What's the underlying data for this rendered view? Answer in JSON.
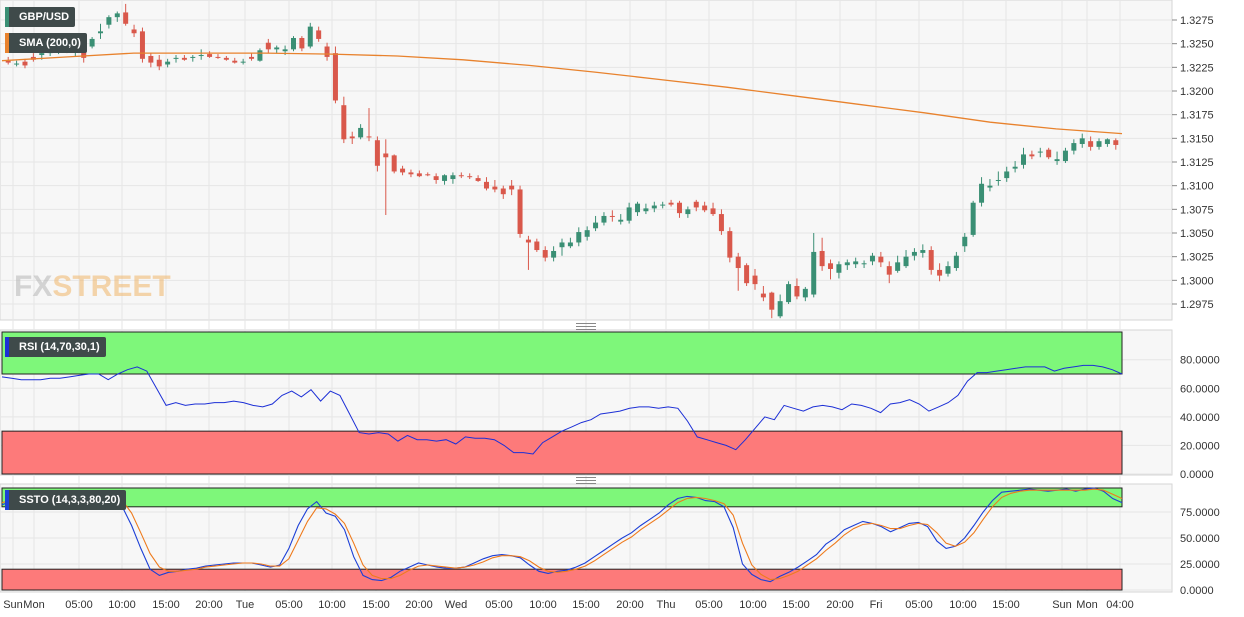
{
  "colors": {
    "bull": "#3a8f74",
    "bear": "#d9584b",
    "sma": "#e8822d",
    "rsi": "#1c2fd6",
    "stoch_k": "#1c3fd6",
    "stoch_d": "#ee7a1c",
    "overbought_zone": "#7ef77a",
    "oversold_zone": "#fd7a7a",
    "grid": "#e6e6e6",
    "panel_bg": "#f7f7f7"
  },
  "watermark": {
    "fx": "FX",
    "street": "STREET"
  },
  "legends": {
    "pair": "GBP/USD",
    "sma": "SMA (200,0)",
    "rsi": "RSI (14,70,30,1)",
    "stoch": "SSTO (14,3,3,80,20)"
  },
  "chart_data": [
    {
      "type": "candlestick",
      "title": "GBP/USD",
      "ylim": [
        1.2955,
        1.33
      ],
      "y_ticks": [
        "1.3275",
        "1.3250",
        "1.3225",
        "1.3200",
        "1.3175",
        "1.3150",
        "1.3125",
        "1.3100",
        "1.3075",
        "1.3050",
        "1.3025",
        "1.3000",
        "1.2975"
      ],
      "x_ticks": [
        "Sun",
        "Mon",
        "05:00",
        "10:00",
        "15:00",
        "20:00",
        "Tue",
        "05:00",
        "10:00",
        "15:00",
        "20:00",
        "Wed",
        "05:00",
        "10:00",
        "15:00",
        "20:00",
        "Thu",
        "05:00",
        "10:00",
        "15:00",
        "20:00",
        "Fri",
        "05:00",
        "10:00",
        "15:00",
        "Sun",
        "Mon",
        "04:00"
      ],
      "candles": [
        [
          1.3232,
          1.3236,
          1.3228,
          1.323
        ],
        [
          1.3228,
          1.3232,
          1.3226,
          1.3229
        ],
        [
          1.3231,
          1.3234,
          1.3224,
          1.3227
        ],
        [
          1.3236,
          1.324,
          1.3231,
          1.3233
        ],
        [
          1.3238,
          1.3244,
          1.3233,
          1.324
        ],
        [
          1.324,
          1.3244,
          1.3237,
          1.3242
        ],
        [
          1.3243,
          1.325,
          1.3239,
          1.3246
        ],
        [
          1.3244,
          1.3248,
          1.324,
          1.3242
        ],
        [
          1.3242,
          1.3248,
          1.3236,
          1.3246
        ],
        [
          1.3242,
          1.3246,
          1.323,
          1.3235
        ],
        [
          1.3247,
          1.3257,
          1.3245,
          1.3255
        ],
        [
          1.3261,
          1.3271,
          1.3255,
          1.3263
        ],
        [
          1.327,
          1.328,
          1.3266,
          1.3278
        ],
        [
          1.3278,
          1.3284,
          1.3273,
          1.3282
        ],
        [
          1.3283,
          1.3292,
          1.3269,
          1.3271
        ],
        [
          1.3265,
          1.327,
          1.3257,
          1.3261
        ],
        [
          1.3263,
          1.3267,
          1.323,
          1.3234
        ],
        [
          1.3237,
          1.324,
          1.3225,
          1.323
        ],
        [
          1.3233,
          1.3238,
          1.3222,
          1.3226
        ],
        [
          1.3228,
          1.3234,
          1.3225,
          1.3231
        ],
        [
          1.3234,
          1.3238,
          1.323,
          1.3235
        ],
        [
          1.3235,
          1.3238,
          1.3232,
          1.3233
        ],
        [
          1.3235,
          1.3238,
          1.3231,
          1.3236
        ],
        [
          1.3237,
          1.3244,
          1.3233,
          1.3238
        ],
        [
          1.3239,
          1.3242,
          1.3235,
          1.3236
        ],
        [
          1.3236,
          1.3239,
          1.3234,
          1.3235
        ],
        [
          1.3235,
          1.3237,
          1.3232,
          1.3233
        ],
        [
          1.3232,
          1.3235,
          1.3229,
          1.323
        ],
        [
          1.323,
          1.3234,
          1.3228,
          1.3231
        ],
        [
          1.3236,
          1.324,
          1.3232,
          1.3234
        ],
        [
          1.3232,
          1.3245,
          1.3231,
          1.3243
        ],
        [
          1.3251,
          1.3255,
          1.324,
          1.3244
        ],
        [
          1.3244,
          1.3248,
          1.324,
          1.3246
        ],
        [
          1.3242,
          1.3248,
          1.3238,
          1.3244
        ],
        [
          1.3244,
          1.3258,
          1.3242,
          1.3256
        ],
        [
          1.3256,
          1.3258,
          1.3242,
          1.3245
        ],
        [
          1.3247,
          1.3272,
          1.3245,
          1.3268
        ],
        [
          1.3264,
          1.3268,
          1.3252,
          1.3255
        ],
        [
          1.3247,
          1.3251,
          1.3232,
          1.3236
        ],
        [
          1.324,
          1.3247,
          1.3187,
          1.319
        ],
        [
          1.3185,
          1.3194,
          1.3145,
          1.3149
        ],
        [
          1.3152,
          1.3157,
          1.3144,
          1.315
        ],
        [
          1.3151,
          1.3165,
          1.3149,
          1.3161
        ],
        [
          1.3152,
          1.3182,
          1.3147,
          1.3151
        ],
        [
          1.3148,
          1.3152,
          1.3115,
          1.3121
        ],
        [
          1.3134,
          1.3149,
          1.3069,
          1.313
        ],
        [
          1.3132,
          1.3133,
          1.3113,
          1.3115
        ],
        [
          1.3118,
          1.3121,
          1.3111,
          1.3114
        ],
        [
          1.3114,
          1.3117,
          1.3109,
          1.3112
        ],
        [
          1.3113,
          1.3116,
          1.3109,
          1.311
        ],
        [
          1.3112,
          1.3114,
          1.311,
          1.3111
        ],
        [
          1.311,
          1.3113,
          1.3102,
          1.3106
        ],
        [
          1.3105,
          1.3112,
          1.3101,
          1.3111
        ],
        [
          1.3107,
          1.3114,
          1.3102,
          1.3111
        ],
        [
          1.3111,
          1.3114,
          1.3108,
          1.311
        ],
        [
          1.311,
          1.3113,
          1.3107,
          1.3109
        ],
        [
          1.3108,
          1.3111,
          1.3104,
          1.3105
        ],
        [
          1.3104,
          1.3109,
          1.3095,
          1.3097
        ],
        [
          1.3099,
          1.3106,
          1.3093,
          1.3096
        ],
        [
          1.3097,
          1.31,
          1.3086,
          1.3091
        ],
        [
          1.31,
          1.3106,
          1.309,
          1.3096
        ],
        [
          1.3096,
          1.31,
          1.3045,
          1.3049
        ],
        [
          1.3043,
          1.3047,
          1.3011,
          1.304
        ],
        [
          1.3041,
          1.3044,
          1.303,
          1.3032
        ],
        [
          1.3032,
          1.3036,
          1.302,
          1.3024
        ],
        [
          1.3024,
          1.3036,
          1.302,
          1.3031
        ],
        [
          1.3035,
          1.3044,
          1.3026,
          1.304
        ],
        [
          1.3036,
          1.3045,
          1.3034,
          1.304
        ],
        [
          1.304,
          1.3056,
          1.3036,
          1.3051
        ],
        [
          1.3046,
          1.3057,
          1.3042,
          1.3053
        ],
        [
          1.3055,
          1.3068,
          1.3052,
          1.3061
        ],
        [
          1.3061,
          1.3072,
          1.3058,
          1.3068
        ],
        [
          1.3068,
          1.3074,
          1.3062,
          1.3067
        ],
        [
          1.3062,
          1.307,
          1.3059,
          1.3064
        ],
        [
          1.3063,
          1.3082,
          1.306,
          1.3077
        ],
        [
          1.3072,
          1.3083,
          1.3068,
          1.3081
        ],
        [
          1.3073,
          1.3081,
          1.307,
          1.3076
        ],
        [
          1.3076,
          1.3083,
          1.3072,
          1.3079
        ],
        [
          1.3079,
          1.3083,
          1.3076,
          1.308
        ],
        [
          1.3082,
          1.3085,
          1.3078,
          1.308
        ],
        [
          1.3082,
          1.3084,
          1.3066,
          1.3071
        ],
        [
          1.307,
          1.3078,
          1.3066,
          1.3075
        ],
        [
          1.3083,
          1.3085,
          1.3073,
          1.3077
        ],
        [
          1.3079,
          1.3083,
          1.3072,
          1.3074
        ],
        [
          1.3076,
          1.3082,
          1.3068,
          1.307
        ],
        [
          1.307,
          1.3075,
          1.3048,
          1.3052
        ],
        [
          1.3052,
          1.3056,
          1.3019,
          1.3024
        ],
        [
          1.3025,
          1.3029,
          1.2989,
          1.3013
        ],
        [
          1.3016,
          1.3018,
          1.2994,
          1.2997
        ],
        [
          1.3005,
          1.3012,
          1.299,
          1.2996
        ],
        [
          1.2986,
          1.2994,
          1.2978,
          1.2982
        ],
        [
          1.2987,
          1.2988,
          1.296,
          1.2969
        ],
        [
          1.2962,
          1.2985,
          1.296,
          1.2978
        ],
        [
          1.2977,
          1.2999,
          1.2975,
          1.2996
        ],
        [
          1.2994,
          1.3002,
          1.298,
          1.2983
        ],
        [
          1.2982,
          1.2993,
          1.2978,
          1.2991
        ],
        [
          1.2985,
          1.305,
          1.2982,
          1.303
        ],
        [
          1.3031,
          1.3045,
          1.301,
          1.3015
        ],
        [
          1.3018,
          1.3022,
          1.3001,
          1.3012
        ],
        [
          1.3008,
          1.302,
          1.3002,
          1.3017
        ],
        [
          1.3016,
          1.3022,
          1.3011,
          1.3019
        ],
        [
          1.3017,
          1.3024,
          1.3013,
          1.302
        ],
        [
          1.3017,
          1.3021,
          1.3013,
          1.3018
        ],
        [
          1.302,
          1.3029,
          1.3016,
          1.3026
        ],
        [
          1.3025,
          1.303,
          1.3014,
          1.3019
        ],
        [
          1.3015,
          1.302,
          1.2997,
          1.3006
        ],
        [
          1.301,
          1.3026,
          1.3008,
          1.3019
        ],
        [
          1.3015,
          1.3032,
          1.3013,
          1.3025
        ],
        [
          1.3026,
          1.3034,
          1.3021,
          1.303
        ],
        [
          1.3029,
          1.3038,
          1.3024,
          1.3032
        ],
        [
          1.3032,
          1.3036,
          1.3006,
          1.3011
        ],
        [
          1.3011,
          1.3018,
          1.2999,
          1.3005
        ],
        [
          1.3007,
          1.302,
          1.3004,
          1.3015
        ],
        [
          1.3013,
          1.303,
          1.301,
          1.3026
        ],
        [
          1.3036,
          1.305,
          1.303,
          1.3046
        ],
        [
          1.3048,
          1.3084,
          1.3046,
          1.3082
        ],
        [
          1.3082,
          1.3109,
          1.3078,
          1.3102
        ],
        [
          1.3098,
          1.3107,
          1.3094,
          1.31
        ],
        [
          1.3105,
          1.3115,
          1.31,
          1.3106
        ],
        [
          1.3108,
          1.312,
          1.3104,
          1.3115
        ],
        [
          1.3118,
          1.3126,
          1.3114,
          1.312
        ],
        [
          1.3122,
          1.314,
          1.3118,
          1.3133
        ],
        [
          1.3133,
          1.3137,
          1.3128,
          1.3131
        ],
        [
          1.3135,
          1.314,
          1.313,
          1.3136
        ],
        [
          1.3138,
          1.314,
          1.3128,
          1.313
        ],
        [
          1.3126,
          1.3136,
          1.3122,
          1.3128
        ],
        [
          1.3126,
          1.314,
          1.3124,
          1.3137
        ],
        [
          1.3137,
          1.3149,
          1.3133,
          1.3145
        ],
        [
          1.3144,
          1.3155,
          1.314,
          1.315
        ],
        [
          1.3147,
          1.3152,
          1.3137,
          1.3141
        ],
        [
          1.3141,
          1.315,
          1.3138,
          1.3147
        ],
        [
          1.3144,
          1.315,
          1.3141,
          1.3149
        ],
        [
          1.3148,
          1.315,
          1.3138,
          1.3143
        ]
      ],
      "sma_200": [
        1.3232,
        1.3236,
        1.324,
        1.324,
        1.324,
        1.3239,
        1.3237,
        1.3233,
        1.3227,
        1.322,
        1.3212,
        1.3204,
        1.3195,
        1.3186,
        1.3177,
        1.3167,
        1.316,
        1.3155
      ]
    },
    {
      "type": "line",
      "title": "RSI (14,70,30,1)",
      "ylim": [
        0,
        100
      ],
      "y_ticks": [
        "80.0000",
        "60.0000",
        "40.0000",
        "20.0000",
        "0.0000"
      ],
      "overbought": 70,
      "oversold": 30,
      "values": [
        68,
        67,
        66,
        66,
        66,
        67,
        67,
        68,
        69,
        70,
        70,
        66,
        70,
        73,
        75,
        72,
        60,
        48,
        50,
        48,
        49,
        49,
        50,
        50,
        51,
        50,
        48,
        47,
        49,
        55,
        58,
        54,
        59,
        51,
        58,
        55,
        42,
        29,
        28,
        29,
        28,
        23,
        27,
        24,
        24,
        23,
        24,
        21,
        26,
        25,
        25,
        24,
        20,
        15,
        15,
        14,
        22,
        26,
        30,
        33,
        36,
        38,
        42,
        43,
        44,
        46,
        47,
        47,
        46,
        47,
        46,
        37,
        26,
        24,
        22,
        20,
        17,
        24,
        32,
        40,
        38,
        48,
        46,
        44,
        47,
        48,
        47,
        45,
        49,
        48,
        46,
        43,
        49,
        50,
        52,
        49,
        44,
        47,
        50,
        55,
        65,
        71,
        71,
        72,
        73,
        74,
        75,
        75,
        75,
        72,
        74,
        75,
        76,
        76,
        75,
        73,
        70
      ]
    },
    {
      "type": "line",
      "title": "SSTO (14,3,3,80,20)",
      "ylim": [
        0,
        100
      ],
      "y_ticks": [
        "75.0000",
        "50.0000",
        "25.0000",
        "0.0000"
      ],
      "overbought": 80,
      "oversold": 20,
      "series": [
        {
          "values": [
            82,
            85,
            88,
            90,
            92,
            90,
            87,
            79,
            81,
            84,
            88,
            92,
            90,
            80,
            62,
            40,
            20,
            14,
            17,
            18,
            20,
            21,
            23,
            24,
            25,
            26,
            26,
            26,
            24,
            22,
            24,
            40,
            62,
            78,
            85,
            74,
            71,
            58,
            32,
            14,
            10,
            9,
            12,
            18,
            22,
            26,
            24,
            22,
            21,
            21,
            22,
            26,
            30,
            33,
            34,
            33,
            31,
            24,
            18,
            16,
            18,
            19,
            22,
            26,
            32,
            38,
            44,
            50,
            55,
            62,
            68,
            74,
            82,
            88,
            90,
            89,
            86,
            85,
            80,
            60,
            25,
            15,
            10,
            8,
            13,
            17,
            22,
            28,
            34,
            44,
            50,
            58,
            62,
            66,
            64,
            61,
            56,
            60,
            64,
            65,
            61,
            47,
            40,
            42,
            50,
            62,
            75,
            86,
            94,
            95,
            96,
            97,
            96,
            95,
            96,
            97,
            95,
            97,
            98,
            95,
            88,
            84
          ]
        },
        {
          "values": [
            84,
            86,
            87,
            89,
            90,
            90,
            88,
            84,
            82,
            83,
            86,
            89,
            90,
            86,
            74,
            55,
            35,
            22,
            18,
            18,
            19,
            20,
            22,
            23,
            24,
            25,
            26,
            26,
            25,
            23,
            23,
            30,
            48,
            66,
            79,
            78,
            73,
            64,
            45,
            24,
            14,
            11,
            11,
            14,
            19,
            23,
            24,
            23,
            22,
            21,
            22,
            24,
            27,
            31,
            33,
            33,
            32,
            28,
            22,
            18,
            17,
            18,
            20,
            23,
            28,
            34,
            40,
            46,
            51,
            58,
            64,
            70,
            77,
            84,
            88,
            89,
            88,
            86,
            83,
            72,
            45,
            24,
            15,
            10,
            11,
            14,
            18,
            24,
            30,
            38,
            45,
            53,
            59,
            63,
            64,
            62,
            59,
            59,
            62,
            64,
            63,
            55,
            45,
            42,
            46,
            55,
            68,
            80,
            89,
            93,
            95,
            96,
            96,
            96,
            96,
            96,
            96,
            96,
            97,
            96,
            92,
            88
          ]
        }
      ]
    }
  ]
}
